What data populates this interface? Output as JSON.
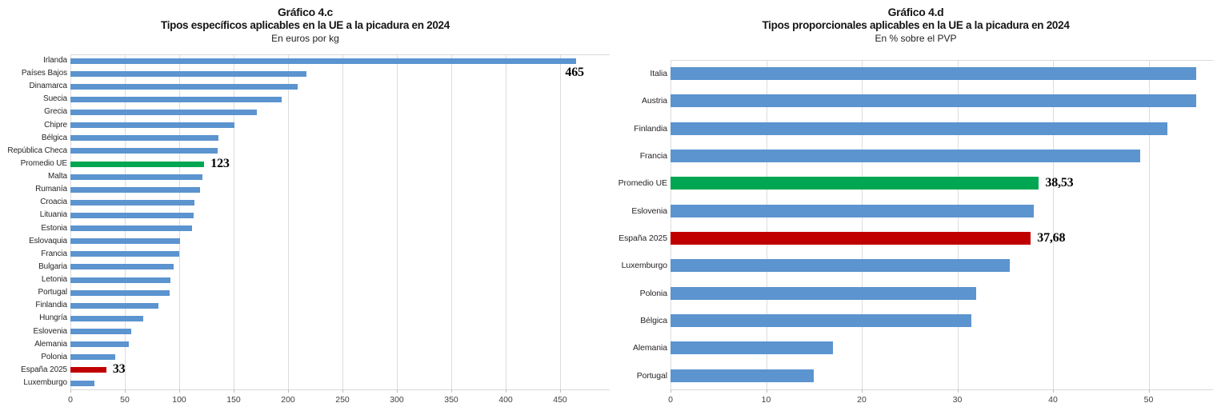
{
  "figure": {
    "background": "#ffffff"
  },
  "colors": {
    "bar_blue": "#5b94cf",
    "highlight_green": "#00a651",
    "highlight_red": "#c00000",
    "gridline": "#dcdcdc",
    "text": "#262626"
  },
  "chart_data": [
    {
      "id": "chart-4c",
      "type": "bar",
      "orientation": "horizontal",
      "title": "Gráfico 4.c",
      "subtitle": "Tipos específicos aplicables en la UE a la picadura en 2024",
      "units_label": "En euros por kg",
      "categories": [
        "Irlanda",
        "Países Bajos",
        "Dinamarca",
        "Suecia",
        "Grecia",
        "Chipre",
        "Bélgica",
        "República Checa",
        "Promedio UE",
        "Malta",
        "Rumanía",
        "Croacia",
        "Lituania",
        "Estonia",
        "Eslovaquia",
        "Francia",
        "Bulgaria",
        "Letonia",
        "Portugal",
        "Finlandia",
        "Hungría",
        "Eslovenia",
        "Alemania",
        "Polonia",
        "España 2025",
        "Luxemburgo"
      ],
      "values": [
        465,
        217,
        209,
        194,
        171,
        151,
        136,
        135,
        123,
        121,
        119,
        114,
        113,
        112,
        101,
        100,
        95,
        92,
        91,
        81,
        67,
        56,
        54,
        41,
        33,
        22
      ],
      "xticks": [
        0,
        50,
        100,
        150,
        200,
        250,
        300,
        350,
        400,
        450
      ],
      "xlim": [
        0,
        494
      ],
      "grid": true,
      "legend": "none",
      "bar_color_default": "#5b94cf",
      "highlights": [
        {
          "index": 8,
          "color": "#00a651"
        },
        {
          "index": 24,
          "color": "#c00000"
        }
      ],
      "data_labels": [
        {
          "index": 0,
          "text": "465",
          "placement": "below-end"
        },
        {
          "index": 8,
          "text": "123",
          "placement": "after"
        },
        {
          "index": 24,
          "text": "33",
          "placement": "after"
        }
      ]
    },
    {
      "id": "chart-4d",
      "type": "bar",
      "orientation": "horizontal",
      "title": "Gráfico 4.d",
      "subtitle": "Tipos proporcionales aplicables en la UE a la picadura en 2024",
      "units_label": "En % sobre el PVP",
      "categories": [
        "Italia",
        "Austria",
        "Finlandia",
        "Francia",
        "Promedio UE",
        "Eslovenia",
        "España 2025",
        "Luxemburgo",
        "Polonia",
        "Bélgica",
        "Alemania",
        "Portugal"
      ],
      "values": [
        55,
        55,
        52,
        49.1,
        38.53,
        38,
        37.68,
        35.5,
        32,
        31.5,
        17,
        15
      ],
      "xticks": [
        0,
        10,
        20,
        30,
        40,
        50
      ],
      "xlim": [
        0,
        56.7
      ],
      "grid": true,
      "legend": "none",
      "bar_color_default": "#5b94cf",
      "highlights": [
        {
          "index": 4,
          "color": "#00a651"
        },
        {
          "index": 6,
          "color": "#c00000"
        }
      ],
      "data_labels": [
        {
          "index": 4,
          "text": "38,53",
          "placement": "after"
        },
        {
          "index": 6,
          "text": "37,68",
          "placement": "after"
        }
      ]
    }
  ]
}
